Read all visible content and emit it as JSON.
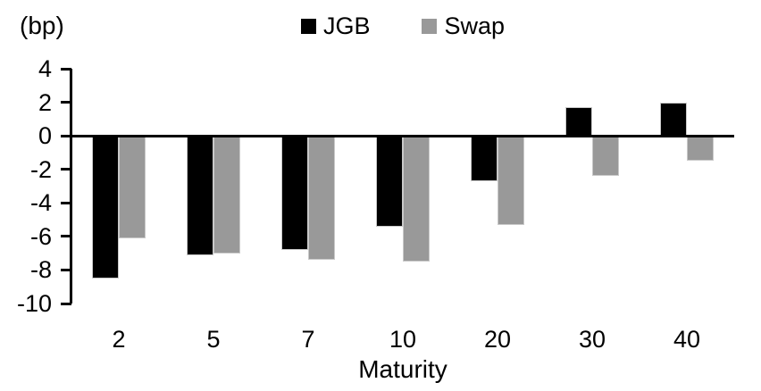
{
  "unit_label": "(bp)",
  "legend": {
    "items": [
      {
        "label": "JGB",
        "color": "#000000"
      },
      {
        "label": "Swap",
        "color": "#999999"
      }
    ]
  },
  "chart_data": {
    "type": "bar",
    "title": "",
    "categories": [
      "2",
      "5",
      "7",
      "10",
      "20",
      "30",
      "40"
    ],
    "series": [
      {
        "name": "JGB",
        "color": "#000000",
        "values": [
          -8.5,
          -7.1,
          -6.8,
          -5.4,
          -2.7,
          1.7,
          2.0
        ]
      },
      {
        "name": "Swap",
        "color": "#999999",
        "values": [
          -6.1,
          -7.0,
          -7.4,
          -7.5,
          -5.3,
          -2.4,
          -1.5
        ]
      }
    ],
    "xlabel": "Maturity",
    "ylabel": "(bp)",
    "ylim": [
      -10,
      4
    ],
    "yticks": [
      4,
      2,
      0,
      -2,
      -4,
      -6,
      -8,
      -10
    ],
    "grid": false,
    "legend_position": "top-center",
    "bar_border_color": "#c9c9c9",
    "axis_color": "#000000"
  }
}
